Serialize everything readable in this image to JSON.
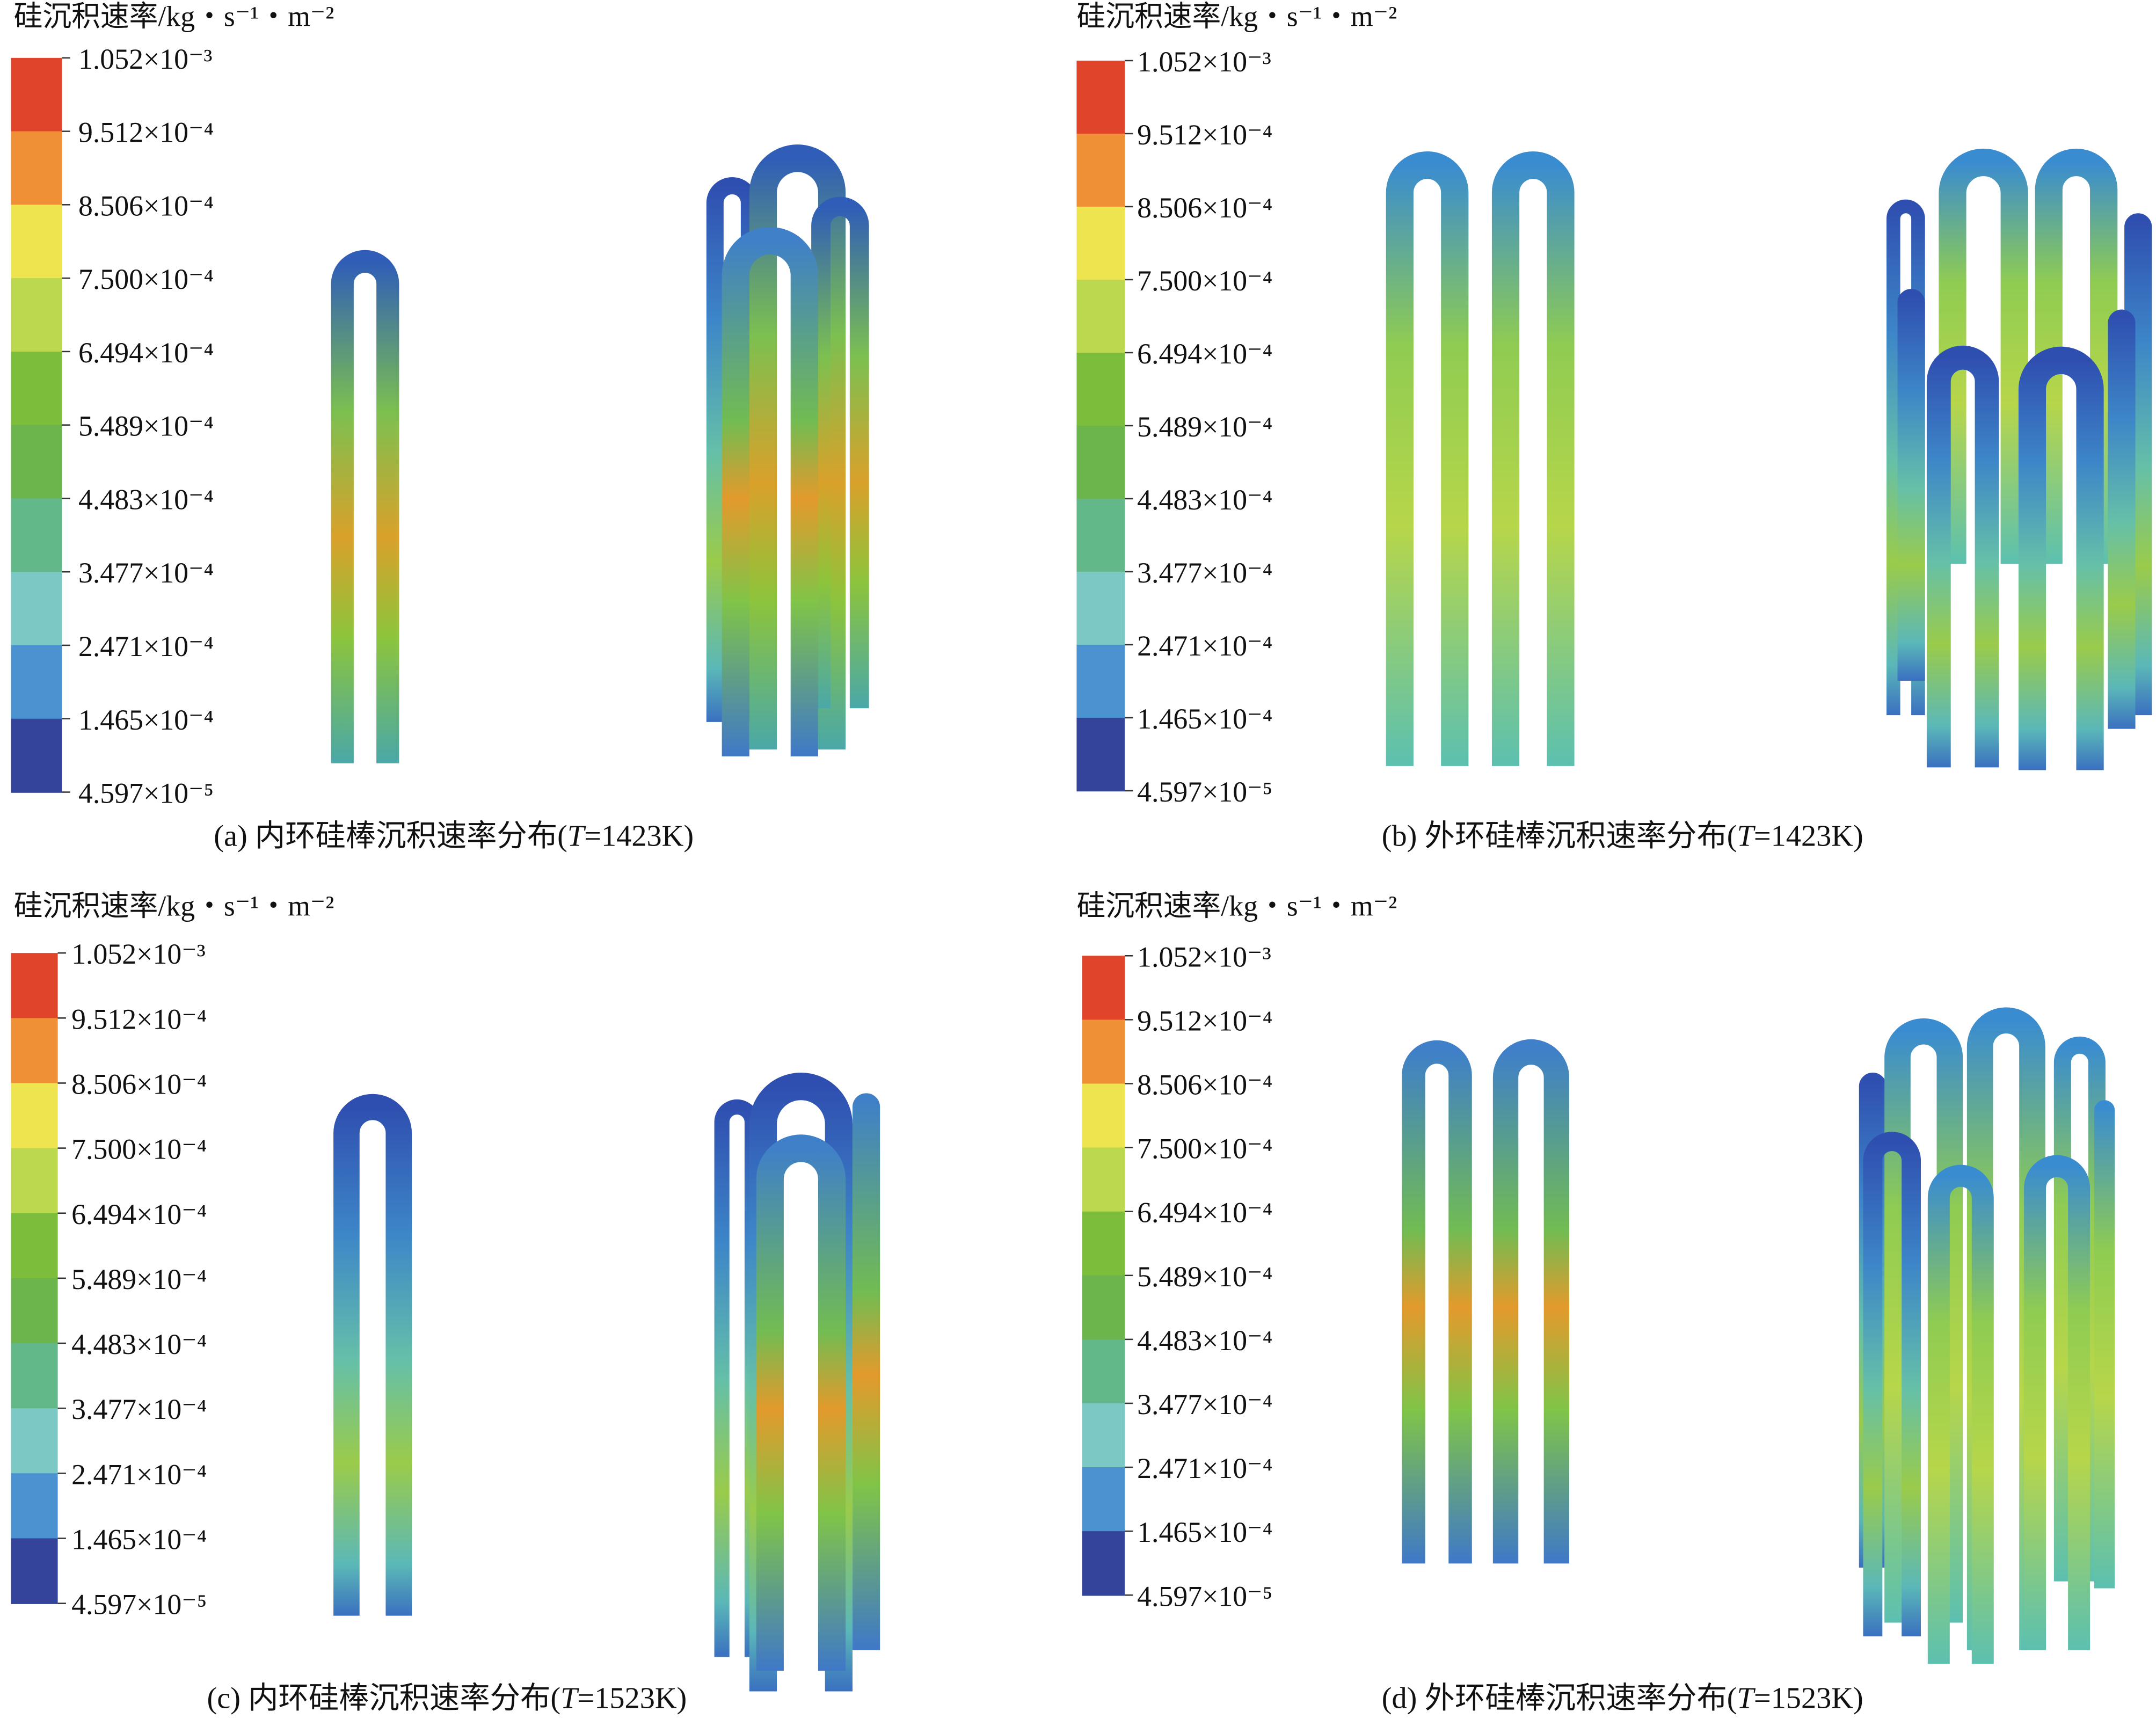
{
  "panels": [
    {
      "legend_title": "硅沉积速率/kg・s⁻¹・m⁻²",
      "legend_ticks": [
        "1.052×10⁻³",
        "9.512×10⁻⁴",
        "8.506×10⁻⁴",
        "7.500×10⁻⁴",
        "6.494×10⁻⁴",
        "5.489×10⁻⁴",
        "4.483×10⁻⁴",
        "3.477×10⁻⁴",
        "2.471×10⁻⁴",
        "1.465×10⁻⁴",
        "4.597×10⁻⁵"
      ],
      "caption": {
        "prefix": "(a) 内环硅棒沉积速率分布(",
        "italic": "T",
        "suffix": "=1423K)"
      }
    },
    {
      "legend_title": "硅沉积速率/kg・s⁻¹・m⁻²",
      "legend_ticks": [
        "1.052×10⁻³",
        "9.512×10⁻⁴",
        "8.506×10⁻⁴",
        "7.500×10⁻⁴",
        "6.494×10⁻⁴",
        "5.489×10⁻⁴",
        "4.483×10⁻⁴",
        "3.477×10⁻⁴",
        "2.471×10⁻⁴",
        "1.465×10⁻⁴",
        "4.597×10⁻⁵"
      ],
      "caption": {
        "prefix": "(b) 外环硅棒沉积速率分布(",
        "italic": "T",
        "suffix": "=1423K)"
      }
    },
    {
      "legend_title": "硅沉积速率/kg・s⁻¹・m⁻²",
      "legend_ticks": [
        "1.052×10⁻³",
        "9.512×10⁻⁴",
        "8.506×10⁻⁴",
        "7.500×10⁻⁴",
        "6.494×10⁻⁴",
        "5.489×10⁻⁴",
        "4.483×10⁻⁴",
        "3.477×10⁻⁴",
        "2.471×10⁻⁴",
        "1.465×10⁻⁴",
        "4.597×10⁻⁵"
      ],
      "caption": {
        "prefix": "(c) 内环硅棒沉积速率分布(",
        "italic": "T",
        "suffix": "=1523K)"
      }
    },
    {
      "legend_title": "硅沉积速率/kg・s⁻¹・m⁻²",
      "legend_ticks": [
        "1.052×10⁻³",
        "9.512×10⁻⁴",
        "8.506×10⁻⁴",
        "7.500×10⁻⁴",
        "6.494×10⁻⁴",
        "5.489×10⁻⁴",
        "4.483×10⁻⁴",
        "3.477×10⁻⁴",
        "2.471×10⁻⁴",
        "1.465×10⁻⁴",
        "4.597×10⁻⁵"
      ],
      "caption": {
        "prefix": "(d) 外环硅棒沉积速率分布(",
        "italic": "T",
        "suffix": "=1523K)"
      }
    }
  ]
}
